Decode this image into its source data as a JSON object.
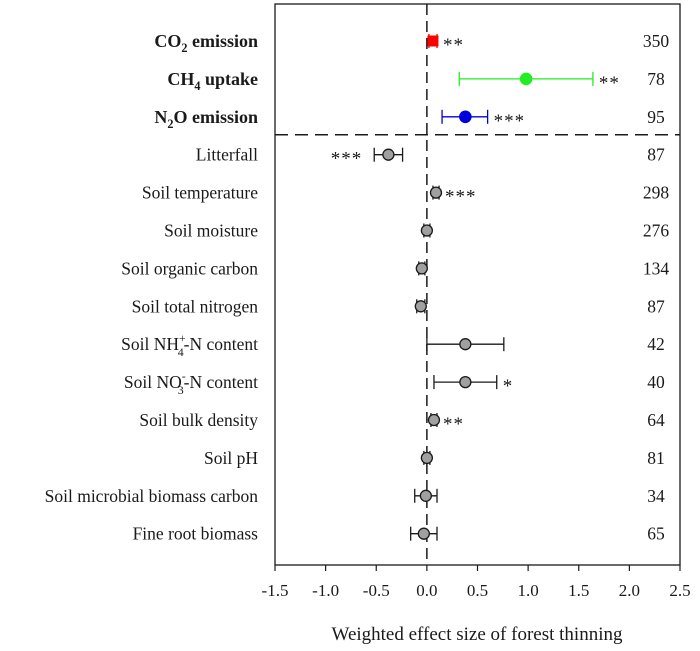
{
  "chart_data": {
    "type": "forest",
    "title": "",
    "xlabel": "Weighted effect size of forest thinning",
    "xlim": [
      -1.5,
      2.5
    ],
    "xticks": [
      "-1.5",
      "-1.0",
      "-0.5",
      "0.0",
      "0.5",
      "1.0",
      "1.5",
      "2.0",
      "2.5"
    ],
    "reference_line": 0,
    "rows": [
      {
        "label": "CO2 emission",
        "label_main": "CO",
        "label_sub": "2",
        "label_rest": " emission",
        "bold": true,
        "mean": 0.06,
        "ci_low": 0.02,
        "ci_high": 0.1,
        "n": "350",
        "sig": "**",
        "color": "#ff0000"
      },
      {
        "label": "CH4 uptake",
        "label_main": "CH",
        "label_sub": "4",
        "label_rest": " uptake",
        "bold": true,
        "mean": 0.98,
        "ci_low": 0.32,
        "ci_high": 1.64,
        "n": "78",
        "sig": "**",
        "color": "#22ee22"
      },
      {
        "label": "N2O emission",
        "label_main": "N",
        "label_sub": "2",
        "label_rest": "O emission",
        "bold": true,
        "mean": 0.38,
        "ci_low": 0.15,
        "ci_high": 0.6,
        "n": "95",
        "sig": "***",
        "color": "#0000dd"
      },
      {
        "label": "Litterfall",
        "bold": false,
        "mean": -0.38,
        "ci_low": -0.52,
        "ci_high": -0.24,
        "n": "87",
        "sig": "***",
        "sig_side": "left",
        "color": "#a0a0a0"
      },
      {
        "label": "Soil temperature",
        "bold": false,
        "mean": 0.09,
        "ci_low": 0.06,
        "ci_high": 0.12,
        "n": "298",
        "sig": "***",
        "color": "#a0a0a0"
      },
      {
        "label": "Soil moisture",
        "bold": false,
        "mean": 0.0,
        "ci_low": -0.03,
        "ci_high": 0.03,
        "n": "276",
        "sig": "",
        "color": "#a0a0a0"
      },
      {
        "label": "Soil organic carbon",
        "bold": false,
        "mean": -0.05,
        "ci_low": -0.08,
        "ci_high": -0.02,
        "n": "134",
        "sig": "",
        "color": "#a0a0a0"
      },
      {
        "label": "Soil total nitrogen",
        "bold": false,
        "mean": -0.06,
        "ci_low": -0.1,
        "ci_high": -0.02,
        "n": "87",
        "sig": "",
        "color": "#a0a0a0"
      },
      {
        "label": "Soil NH4+-N content",
        "label_main": "Soil NH",
        "label_sub": "4",
        "label_sup": "+",
        "label_rest": "-N content",
        "bold": false,
        "mean": 0.38,
        "ci_low": 0.0,
        "ci_high": 0.76,
        "n": "42",
        "sig": "",
        "color": "#a0a0a0"
      },
      {
        "label": "Soil NO3--N content",
        "label_main": "Soil NO",
        "label_sub": "3",
        "label_sup": "-",
        "label_rest": "-N content",
        "bold": false,
        "mean": 0.38,
        "ci_low": 0.07,
        "ci_high": 0.69,
        "n": "40",
        "sig": "*",
        "color": "#a0a0a0"
      },
      {
        "label": "Soil bulk density",
        "bold": false,
        "mean": 0.07,
        "ci_low": 0.04,
        "ci_high": 0.1,
        "n": "64",
        "sig": "**",
        "color": "#a0a0a0"
      },
      {
        "label": "Soil pH",
        "bold": false,
        "mean": 0.0,
        "ci_low": -0.03,
        "ci_high": 0.03,
        "n": "81",
        "sig": "",
        "color": "#a0a0a0"
      },
      {
        "label": "Soil microbial biomass carbon",
        "bold": false,
        "mean": -0.01,
        "ci_low": -0.12,
        "ci_high": 0.1,
        "n": "34",
        "sig": "",
        "color": "#a0a0a0"
      },
      {
        "label": "Fine root biomass",
        "bold": false,
        "mean": -0.03,
        "ci_low": -0.16,
        "ci_high": 0.1,
        "n": "65",
        "sig": "",
        "color": "#a0a0a0"
      }
    ],
    "separator_after_row": 3
  }
}
